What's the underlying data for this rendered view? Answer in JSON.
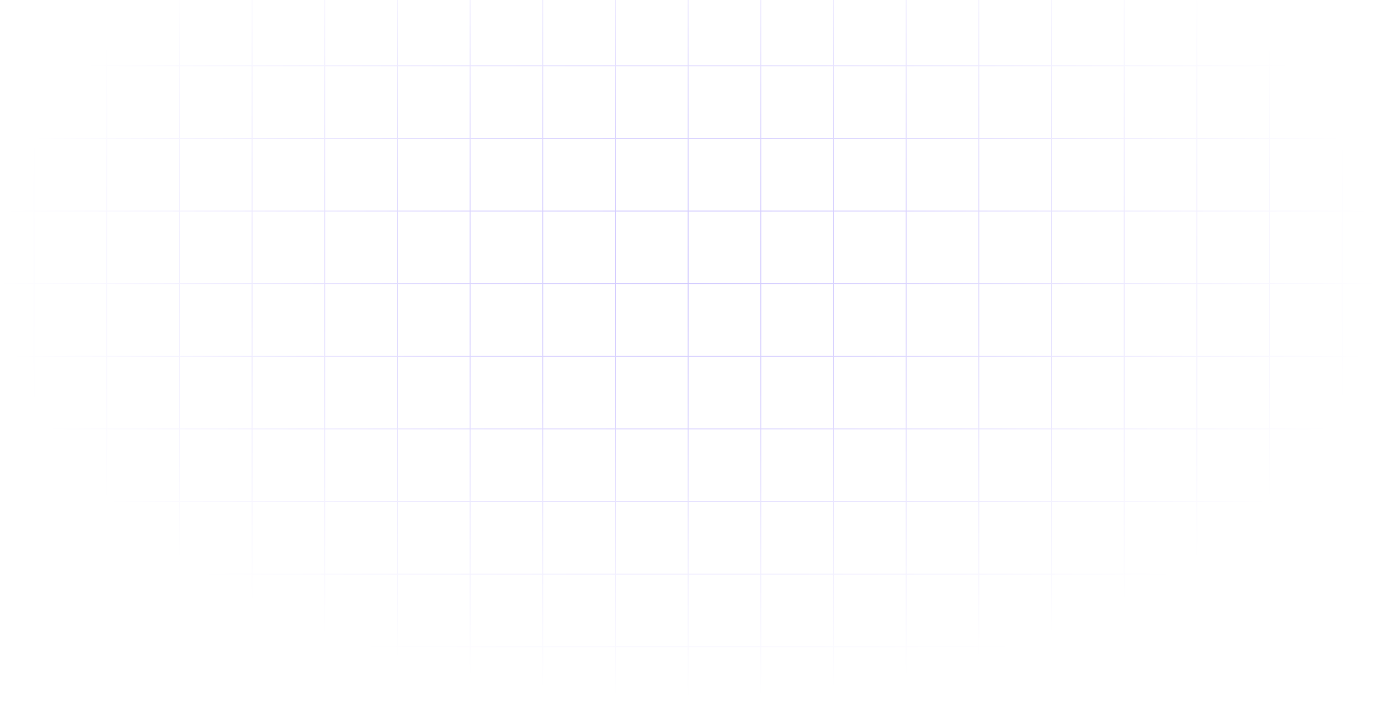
{
  "background": {
    "color": "#ffffff",
    "grid_line_color": "#cfc7ff"
  }
}
